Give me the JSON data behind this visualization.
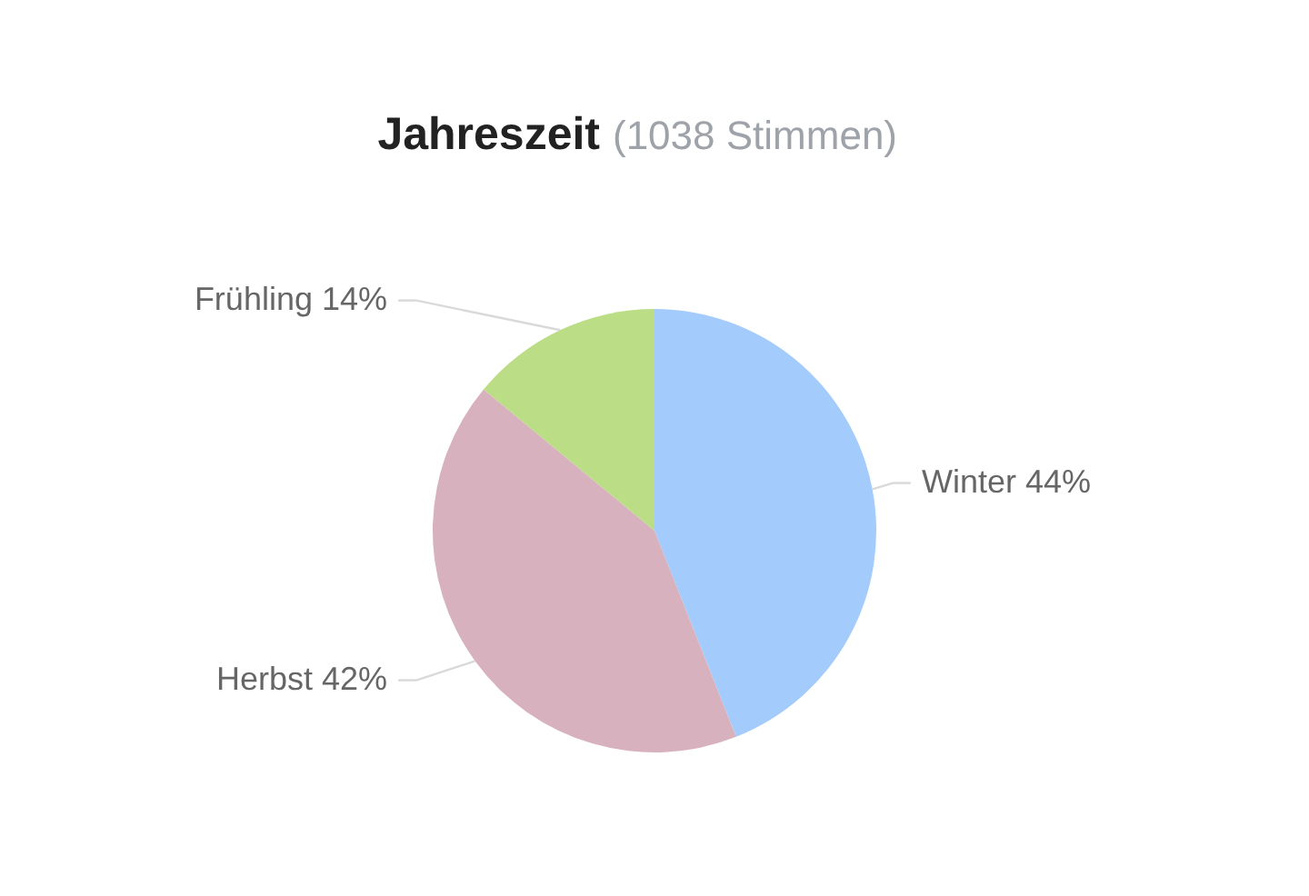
{
  "chart_data": {
    "type": "pie",
    "title": "Jahreszeit",
    "subtitle": "(1038 Stimmen)",
    "categories": [
      "Winter",
      "Herbst",
      "Frühling"
    ],
    "values": [
      44,
      42,
      14
    ],
    "colors": [
      "#a3cbfb",
      "#d8b1be",
      "#badd86"
    ],
    "value_labels": [
      "44%",
      "42%",
      "14%"
    ]
  }
}
